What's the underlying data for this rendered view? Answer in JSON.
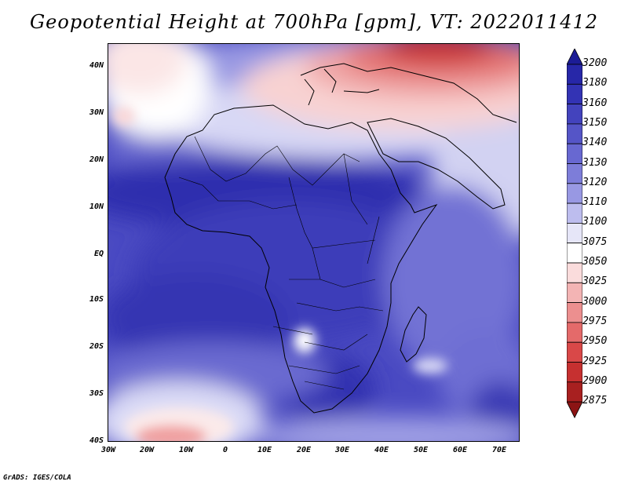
{
  "title": "Geopotential Height at 700hPa [gpm], VT: 2022011412",
  "credit": "GrADS: IGES/COLA",
  "map": {
    "variable": "Geopotential Height",
    "level": "700hPa",
    "units": "gpm",
    "valid_time": "2022011412",
    "lon_range": [
      -30,
      75
    ],
    "lat_range": [
      -40,
      45
    ],
    "lat_ticks": [
      "40N",
      "30N",
      "20N",
      "10N",
      "EQ",
      "10S",
      "20S",
      "30S",
      "40S"
    ],
    "lon_ticks": [
      "30W",
      "20W",
      "10W",
      "0",
      "10E",
      "20E",
      "30E",
      "40E",
      "50E",
      "60E",
      "70E"
    ]
  },
  "colorbar": {
    "levels": [
      "3200",
      "3180",
      "3160",
      "3150",
      "3140",
      "3130",
      "3120",
      "3110",
      "3100",
      "3075",
      "3050",
      "3025",
      "3000",
      "2975",
      "2950",
      "2925",
      "2900",
      "2875"
    ],
    "colors": [
      "#1c1c96",
      "#2727a8",
      "#3333b4",
      "#4343bd",
      "#5555c7",
      "#6868d1",
      "#7d7dd9",
      "#9898e3",
      "#bdbdee",
      "#e6e6f8",
      "#ffffff",
      "#fadcdc",
      "#f3b4b4",
      "#ec8f8f",
      "#e46a6a",
      "#d94848",
      "#c63030",
      "#a82020",
      "#8c1414"
    ]
  },
  "colors": {
    "land_outline": "#000000",
    "background": "#ffffff"
  }
}
